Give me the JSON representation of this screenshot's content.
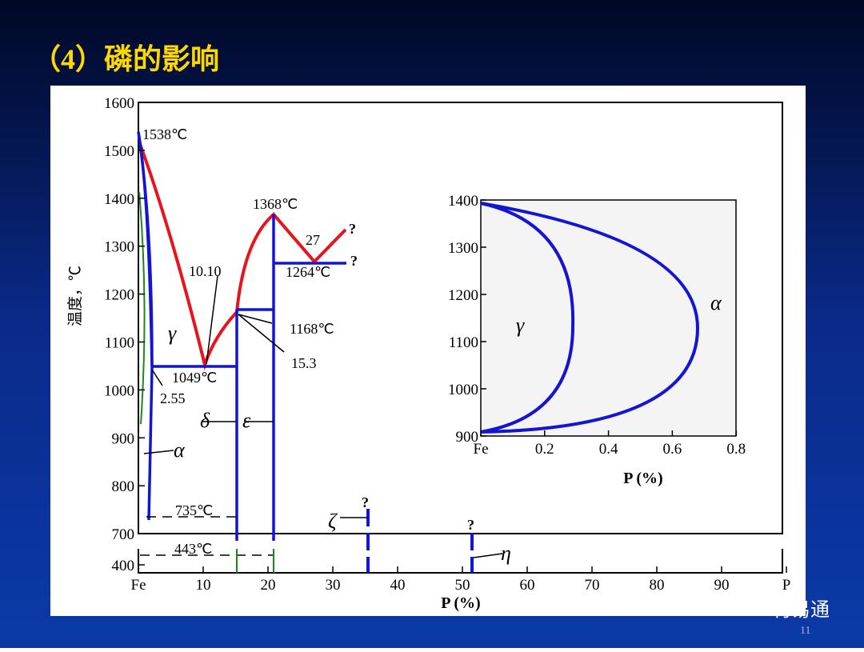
{
  "title": "（4）磷的影响",
  "main_plot": {
    "ylabel": "温度，℃",
    "xlabel": "P (%)",
    "yticks": [
      1600,
      1500,
      1400,
      1300,
      1200,
      1100,
      1000,
      900,
      800,
      700
    ],
    "yticks_lower": [
      400
    ],
    "xticks": [
      {
        "value": 0,
        "label": "Fe"
      },
      10,
      20,
      30,
      40,
      50,
      60,
      70,
      80,
      90,
      {
        "value": 100,
        "label": "P"
      }
    ],
    "annotations": [
      "1538℃",
      "1368℃",
      "27",
      "?",
      "?",
      "10.10",
      "1264℃",
      "1168℃",
      "15.3",
      "1049℃",
      "2.55",
      "735℃",
      "443℃",
      "?",
      "?",
      "γ",
      "δ",
      "ε",
      "α",
      "ζ",
      "η"
    ]
  },
  "inset": {
    "xlabel": "P (%)",
    "yticks": [
      1400,
      1300,
      1200,
      1100,
      1000,
      900
    ],
    "xticks": [
      {
        "value": 0,
        "label": "Fe"
      },
      0.2,
      0.4,
      0.6,
      0.8
    ],
    "annotations": [
      "γ",
      "α"
    ]
  },
  "watermark": "材易通",
  "page_number": "11"
}
